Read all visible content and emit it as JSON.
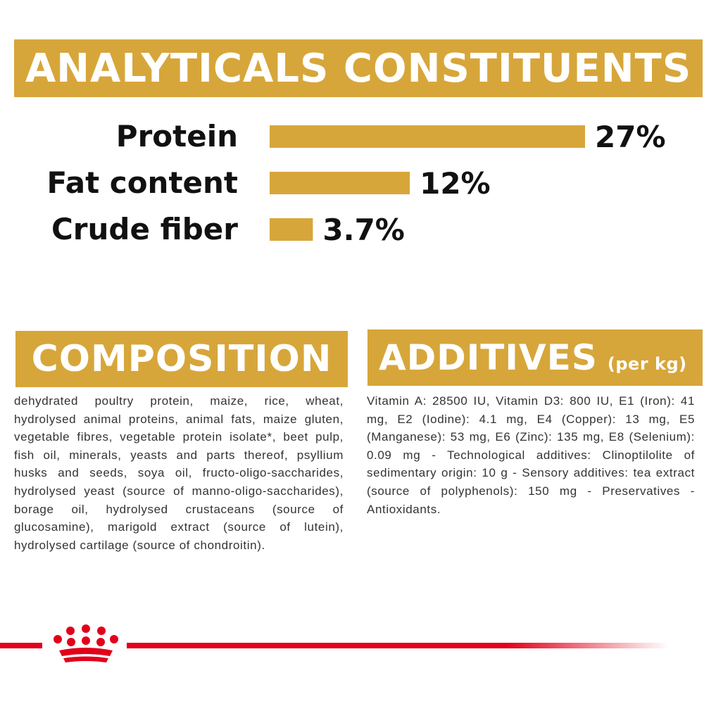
{
  "analytics": {
    "title": "ANALYTICALS CONSTITUENTS"
  },
  "chart_data": {
    "type": "bar",
    "orientation": "horizontal",
    "title": "",
    "categories": [
      "Protein",
      "Fat content",
      "Crude fiber"
    ],
    "values": [
      27,
      12,
      3.7
    ],
    "labels": [
      "27%",
      "12%",
      "3.7%"
    ],
    "unit": "%",
    "color": "#d7a63a",
    "xlabel": "",
    "ylabel": "",
    "grid": false
  },
  "composition": {
    "title": "COMPOSITION",
    "text": "dehydrated poultry protein, maize, rice, wheat, hydrolysed animal proteins, animal fats, maize gluten, vegetable fibres, vegetable protein isolate*, beet pulp, fish oil, minerals, yeasts and parts thereof, psyllium husks and seeds, soya oil, fructo-oligo-saccharides, hydrolysed yeast (source of manno-oligo-saccharides), borage oil, hydrolysed crustaceans (source of glucosamine), marigold extract (source of lutein), hydrolysed cartilage (source of chondroitin)."
  },
  "additives": {
    "title": "ADDITIVES",
    "title_suffix": "(per kg)",
    "text": "Vitamin A: 28500 IU, Vitamin D3: 800 IU, E1 (Iron): 41 mg, E2 (Iodine): 4.1 mg, E4 (Copper): 13 mg, E5 (Manganese): 53 mg, E6 (Zinc): 135 mg, E8 (Selenium): 0.09 mg - Technological additives: Clinoptilolite of sedimentary origin: 10 g - Sensory additives: tea extract (source of polyphenols): 150 mg - Preservatives - Antioxidants."
  },
  "colors": {
    "accent": "#d7a63a",
    "brand_red": "#e2001a"
  },
  "footer": {
    "logo_icon": "royal-canin-crown-icon"
  }
}
